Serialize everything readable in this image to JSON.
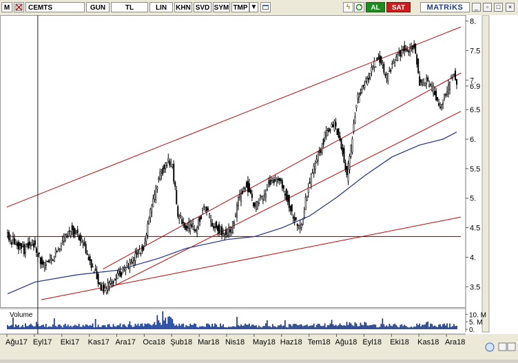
{
  "toolbar": {
    "m_label": "M",
    "symbol": "CEMTS",
    "period": "GUN",
    "currency": "TL",
    "scale": "LIN",
    "buttons": [
      "KHN",
      "SVD",
      "SYM",
      "TMP"
    ],
    "buy_label": "AL",
    "sell_label": "SAT",
    "brand": "MATRiKS"
  },
  "colors": {
    "candle": "#000000",
    "channel": "#c00000",
    "ma": "#1a2f8f",
    "volume": "#1a3d8f",
    "cursor": "#1a1a1a"
  },
  "chart_data": {
    "type": "candlestick",
    "ylim": [
      3.2,
      8.1
    ],
    "yticks": [
      {
        "v": 8.0,
        "label": "8."
      },
      {
        "v": 7.5,
        "label": "7.5"
      },
      {
        "v": 7.0,
        "label": "7."
      },
      {
        "v": 6.9,
        "label": "6.9"
      },
      {
        "v": 6.5,
        "label": "6.5"
      },
      {
        "v": 6.0,
        "label": "6."
      },
      {
        "v": 5.5,
        "label": "5.5"
      },
      {
        "v": 5.0,
        "label": "5."
      },
      {
        "v": 4.5,
        "label": "4.5"
      },
      {
        "v": 4.0,
        "label": "4."
      },
      {
        "v": 3.5,
        "label": "3.5"
      }
    ],
    "x_labels": [
      "Ağu17",
      "Eyl17",
      "Eki17",
      "Kas17",
      "Ara17",
      "Oca18",
      "Şub18",
      "Mar18",
      "Nis18",
      "May18",
      "Haz18",
      "Tem18",
      "Ağu18",
      "Eyl18",
      "Eki18",
      "Kas18",
      "Ara18"
    ],
    "price_path": [
      [
        0,
        4.35
      ],
      [
        12,
        4.12
      ],
      [
        18,
        4.28
      ],
      [
        26,
        3.82
      ],
      [
        33,
        4.0
      ],
      [
        40,
        4.28
      ],
      [
        46,
        4.48
      ],
      [
        53,
        4.32
      ],
      [
        60,
        3.95
      ],
      [
        66,
        3.58
      ],
      [
        70,
        3.45
      ],
      [
        78,
        3.62
      ],
      [
        86,
        3.82
      ],
      [
        93,
        4.02
      ],
      [
        100,
        4.22
      ],
      [
        104,
        4.75
      ],
      [
        110,
        5.35
      ],
      [
        116,
        5.62
      ],
      [
        120,
        5.52
      ],
      [
        124,
        4.72
      ],
      [
        130,
        4.52
      ],
      [
        137,
        4.48
      ],
      [
        143,
        4.85
      ],
      [
        150,
        4.55
      ],
      [
        156,
        4.42
      ],
      [
        163,
        4.45
      ],
      [
        168,
        4.95
      ],
      [
        174,
        5.25
      ],
      [
        180,
        4.85
      ],
      [
        186,
        5.05
      ],
      [
        192,
        5.32
      ],
      [
        198,
        5.28
      ],
      [
        204,
        4.98
      ],
      [
        209,
        4.6
      ],
      [
        214,
        4.55
      ],
      [
        219,
        5.2
      ],
      [
        225,
        5.65
      ],
      [
        232,
        6.12
      ],
      [
        238,
        6.25
      ],
      [
        243,
        5.9
      ],
      [
        247,
        5.35
      ],
      [
        250,
        5.85
      ],
      [
        254,
        6.65
      ],
      [
        260,
        6.95
      ],
      [
        266,
        7.22
      ],
      [
        270,
        7.38
      ],
      [
        276,
        7.05
      ],
      [
        282,
        7.35
      ],
      [
        288,
        7.52
      ],
      [
        292,
        7.42
      ],
      [
        296,
        7.62
      ],
      [
        300,
        6.95
      ],
      [
        305,
        6.98
      ],
      [
        310,
        6.82
      ],
      [
        314,
        6.5
      ],
      [
        318,
        6.72
      ],
      [
        322,
        6.95
      ],
      [
        325,
        7.1
      ],
      [
        327,
        6.92
      ]
    ],
    "ma_path": [
      [
        0,
        3.38
      ],
      [
        20,
        3.58
      ],
      [
        50,
        3.7
      ],
      [
        80,
        3.78
      ],
      [
        110,
        3.98
      ],
      [
        130,
        4.15
      ],
      [
        160,
        4.3
      ],
      [
        180,
        4.35
      ],
      [
        200,
        4.5
      ],
      [
        220,
        4.7
      ],
      [
        240,
        5.02
      ],
      [
        260,
        5.38
      ],
      [
        280,
        5.7
      ],
      [
        300,
        5.9
      ],
      [
        317,
        6.0
      ],
      [
        327,
        6.12
      ]
    ],
    "channel_lines": [
      {
        "name": "upper",
        "from": [
          0,
          4.85
        ],
        "to": [
          330,
          7.9
        ]
      },
      {
        "name": "middle",
        "from": [
          70,
          3.8
        ],
        "to": [
          330,
          7.12
        ]
      },
      {
        "name": "lower",
        "from": [
          70,
          3.42
        ],
        "to": [
          330,
          6.47
        ]
      },
      {
        "name": "support",
        "from": [
          25,
          3.28
        ],
        "to": [
          330,
          4.68
        ]
      },
      {
        "name": "horizontal",
        "from": [
          0,
          4.35
        ],
        "to": [
          330,
          4.35
        ]
      }
    ],
    "volume": {
      "label": "Volume",
      "ylim": [
        0,
        12000000
      ],
      "ticks": [
        {
          "v": 10000000,
          "label": "10. M"
        },
        {
          "v": 5000000,
          "label": "5. M"
        },
        {
          "v": 0,
          "label": "0."
        }
      ]
    },
    "n_bars": 330,
    "cursor_bar": 22
  }
}
